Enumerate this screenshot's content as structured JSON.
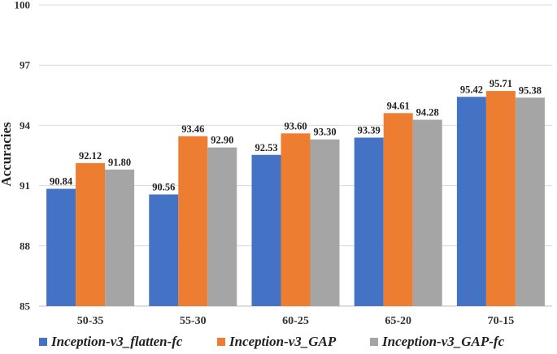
{
  "chart_data": {
    "type": "bar",
    "categories": [
      "50-35",
      "55-30",
      "60-25",
      "65-20",
      "70-15"
    ],
    "series": [
      {
        "name": "Inception-v3_flatten-fc",
        "color": "#4472C4",
        "values": [
          90.84,
          90.56,
          92.53,
          93.39,
          95.42
        ],
        "labels": [
          "90.84",
          "90.56",
          "92.53",
          "93.39",
          "95.42"
        ]
      },
      {
        "name": "Inception-v3_GAP",
        "color": "#ED7D31",
        "values": [
          92.12,
          93.46,
          93.6,
          94.61,
          95.71
        ],
        "labels": [
          "92.12",
          "93.46",
          "93.60",
          "94.61",
          "95.71"
        ]
      },
      {
        "name": "Inception-v3_GAP-fc",
        "color": "#A5A5A5",
        "values": [
          91.8,
          92.9,
          93.3,
          94.28,
          95.38
        ],
        "labels": [
          "91.80",
          "92.90",
          "93.30",
          "94.28",
          "95.38"
        ]
      }
    ],
    "ylabel": "Accuracies",
    "ylim": [
      85,
      100
    ],
    "yticks": [
      85,
      88,
      91,
      94,
      97,
      100
    ],
    "grid": true,
    "legend_position": "bottom"
  }
}
